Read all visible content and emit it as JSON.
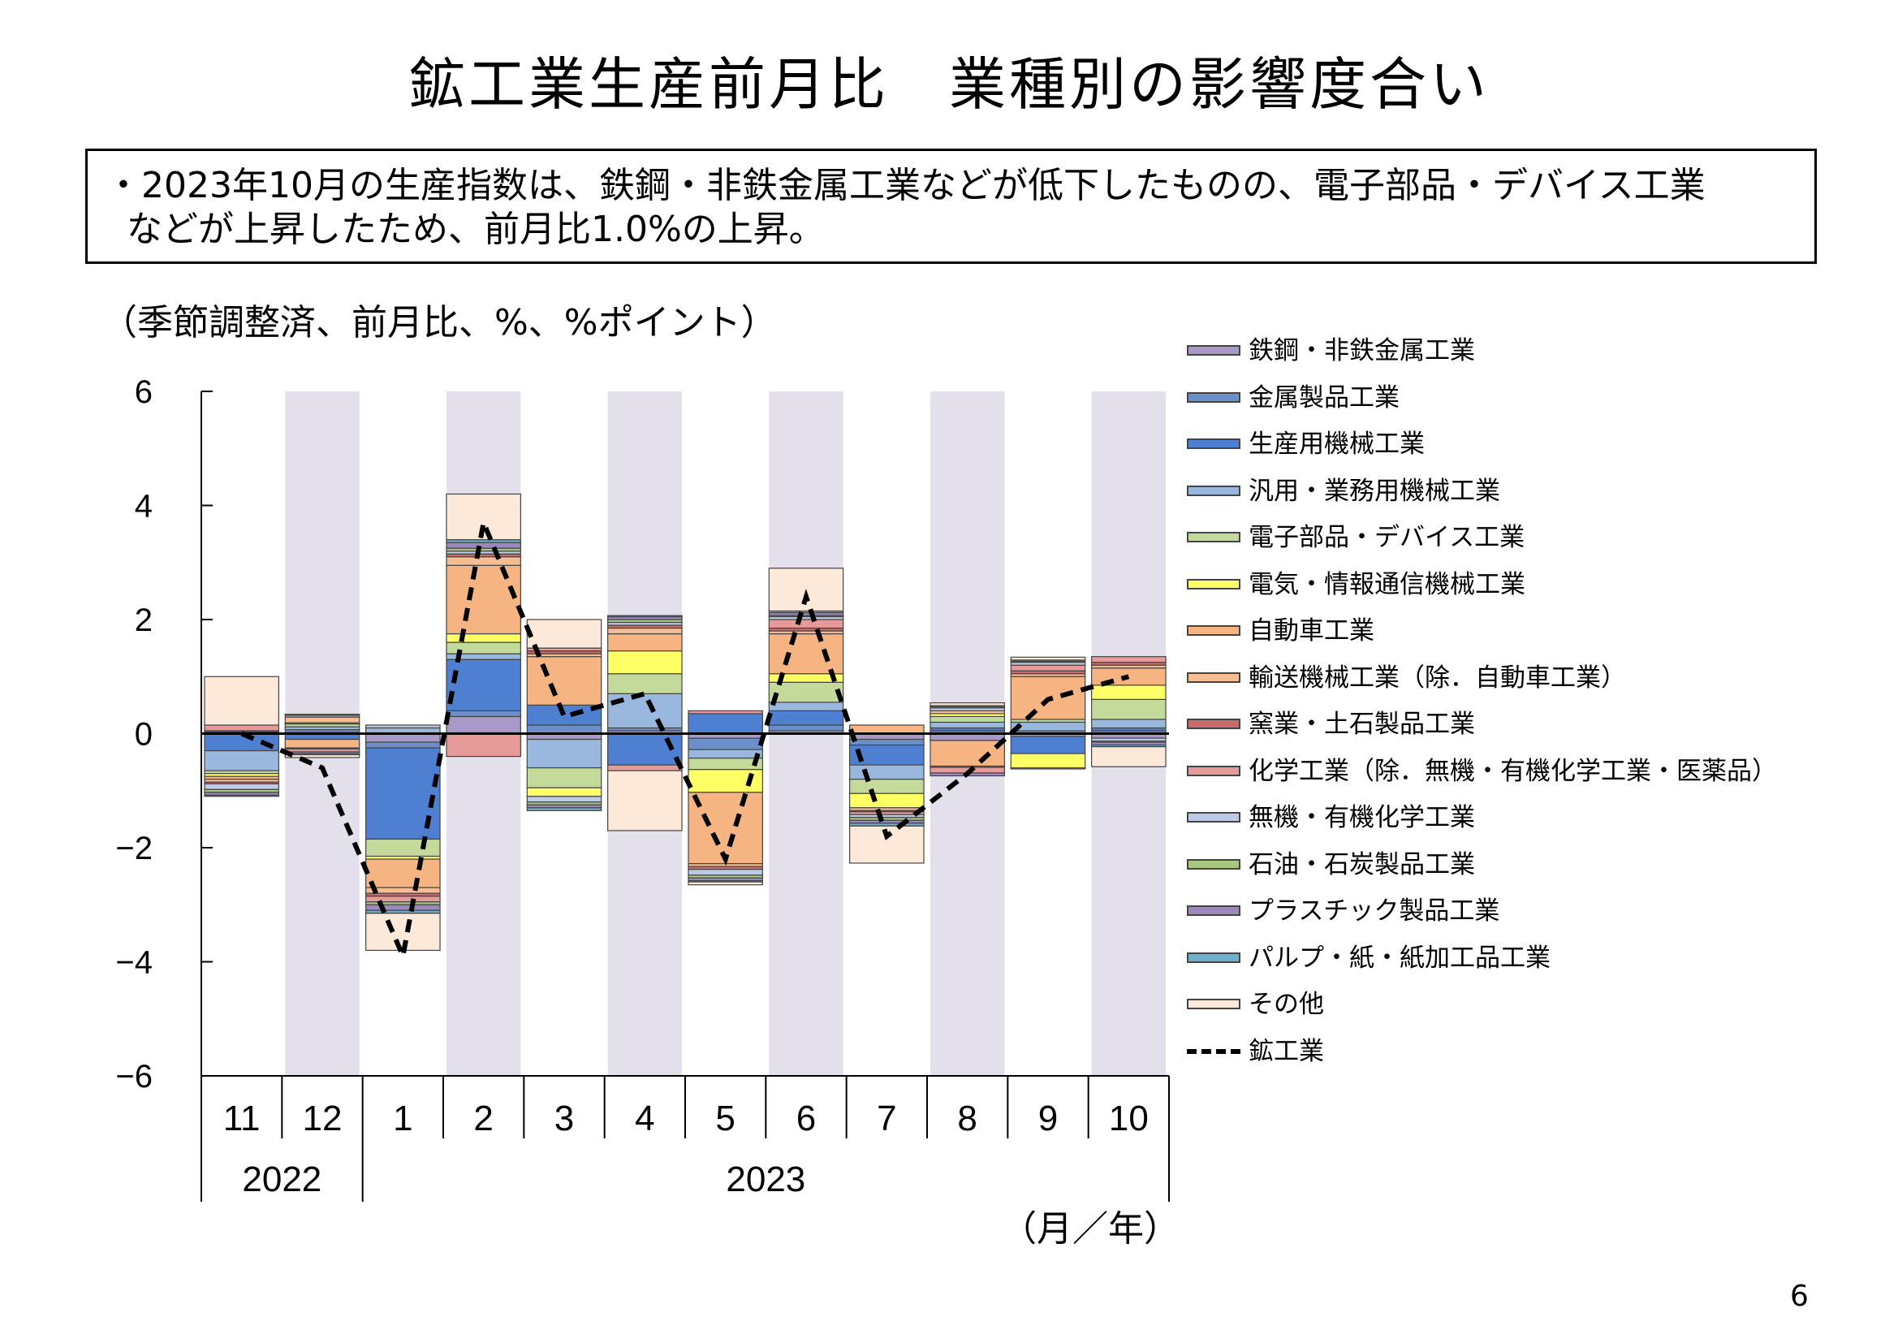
{
  "title": "鉱工業生産前月比　業種別の影響度合い",
  "summary": {
    "line1": "・2023年10月の生産指数は、鉄鋼・非鉄金属工業などが低下したものの、電子部品・デバイス工業",
    "line2": "などが上昇したため、前月比1.0%の上昇。"
  },
  "note": "（季節調整済、前月比、%、%ポイント）",
  "unit_label": "（月／年）",
  "page_number": "6",
  "chart_data": {
    "type": "bar",
    "stacked": true,
    "ylim": [
      -6,
      6
    ],
    "yticks": [
      6,
      4,
      2,
      0,
      -2,
      -4,
      -6
    ],
    "ytick_labels": [
      "6",
      "4",
      "2",
      "0",
      "−2",
      "−4",
      "−6"
    ],
    "categories": [
      "11",
      "12",
      "1",
      "2",
      "3",
      "4",
      "5",
      "6",
      "7",
      "8",
      "9",
      "10"
    ],
    "years": [
      {
        "label": "2022",
        "span": [
          0,
          1
        ]
      },
      {
        "label": "2023",
        "span": [
          2,
          11
        ]
      }
    ],
    "shaded_months": [
      "12",
      "2",
      "4",
      "6",
      "8",
      "10"
    ],
    "series": [
      {
        "name": "鉄鋼・非鉄金属工業",
        "color": "#a899c8",
        "values": [
          0.03,
          0.02,
          -0.15,
          0.3,
          -0.1,
          0.05,
          -0.08,
          0.05,
          -0.1,
          -0.12,
          -0.05,
          -0.08
        ]
      },
      {
        "name": "金属製品工業",
        "color": "#6b8fc9",
        "values": [
          0.02,
          0.05,
          -0.1,
          0.1,
          0.15,
          0.05,
          -0.2,
          0.1,
          -0.1,
          0.05,
          0.05,
          0.05
        ]
      },
      {
        "name": "生産用機械工業",
        "color": "#4f7fd0",
        "values": [
          -0.3,
          -0.1,
          -1.6,
          0.9,
          0.35,
          -0.55,
          0.35,
          0.25,
          -0.35,
          0.05,
          -0.3,
          0.05
        ]
      },
      {
        "name": "汎用・業務用機械工業",
        "color": "#9ab7dd",
        "values": [
          -0.35,
          0.05,
          0.1,
          0.1,
          -0.5,
          0.6,
          -0.15,
          0.15,
          -0.25,
          0.1,
          0.15,
          0.15
        ]
      },
      {
        "name": "電子部品・デバイス工業",
        "color": "#c4da9a",
        "values": [
          -0.05,
          0.05,
          -0.3,
          0.2,
          -0.35,
          0.35,
          -0.2,
          0.35,
          -0.25,
          0.1,
          0.05,
          0.35
        ]
      },
      {
        "name": "電気・情報通信機械工業",
        "color": "#ffff66",
        "values": [
          -0.05,
          0.02,
          -0.05,
          0.15,
          -0.15,
          0.4,
          -0.4,
          0.15,
          -0.25,
          0.05,
          -0.25,
          0.25
        ]
      },
      {
        "name": "自動車工業",
        "color": "#f7b483",
        "values": [
          -0.05,
          -0.15,
          -0.5,
          1.2,
          0.85,
          0.3,
          -1.25,
          0.7,
          0.15,
          -0.45,
          0.75,
          0.3
        ]
      },
      {
        "name": "輸送機械工業（除．自動車工業）",
        "color": "#f5bd94",
        "values": [
          -0.05,
          0.1,
          -0.1,
          0.15,
          0.05,
          0.1,
          -0.05,
          0.05,
          -0.05,
          0.05,
          0.05,
          0.05
        ]
      },
      {
        "name": "窯業・土石製品工業",
        "color": "#c96b6b",
        "values": [
          -0.03,
          -0.02,
          -0.05,
          0.05,
          0.05,
          0.05,
          -0.05,
          0.05,
          -0.02,
          -0.02,
          0.05,
          0.05
        ]
      },
      {
        "name": "化学工業（除．無機・有機化学工業・医薬品）",
        "color": "#e69a9a",
        "values": [
          0.1,
          -0.05,
          -0.1,
          -0.4,
          0.05,
          -0.1,
          0.05,
          0.15,
          -0.05,
          -0.1,
          0.1,
          0.1
        ]
      },
      {
        "name": "無機・有機化学工業",
        "color": "#bdcbe4",
        "values": [
          -0.1,
          0.03,
          0.05,
          0.05,
          -0.1,
          0.05,
          -0.1,
          0.05,
          -0.05,
          0.05,
          0.05,
          -0.05
        ]
      },
      {
        "name": "石油・石炭製品工業",
        "color": "#a9c77f",
        "values": [
          -0.05,
          0.02,
          -0.05,
          0.05,
          -0.05,
          0.05,
          -0.05,
          0.02,
          -0.05,
          0.02,
          0.02,
          -0.02
        ]
      },
      {
        "name": "プラスチック製品工業",
        "color": "#9b89be",
        "values": [
          -0.05,
          -0.03,
          -0.1,
          0.1,
          -0.05,
          0.05,
          -0.05,
          0.05,
          -0.05,
          -0.05,
          -0.02,
          -0.05
        ]
      },
      {
        "name": "パルプ・紙・紙加工品工業",
        "color": "#6eb0cc",
        "values": [
          -0.02,
          -0.02,
          -0.05,
          0.05,
          -0.05,
          0.02,
          -0.02,
          0.03,
          -0.05,
          0.02,
          0.02,
          -0.03
        ]
      },
      {
        "name": "その他",
        "color": "#fde9d9",
        "values": [
          0.85,
          -0.05,
          -0.65,
          0.8,
          0.5,
          -1.05,
          -0.05,
          0.75,
          -0.65,
          0.05,
          0.05,
          -0.35
        ]
      }
    ],
    "total": {
      "name": "鉱工業",
      "values": [
        0.0,
        -0.6,
        -3.9,
        3.7,
        0.3,
        0.7,
        -2.2,
        2.4,
        -1.8,
        -0.7,
        0.6,
        1.0
      ]
    }
  }
}
